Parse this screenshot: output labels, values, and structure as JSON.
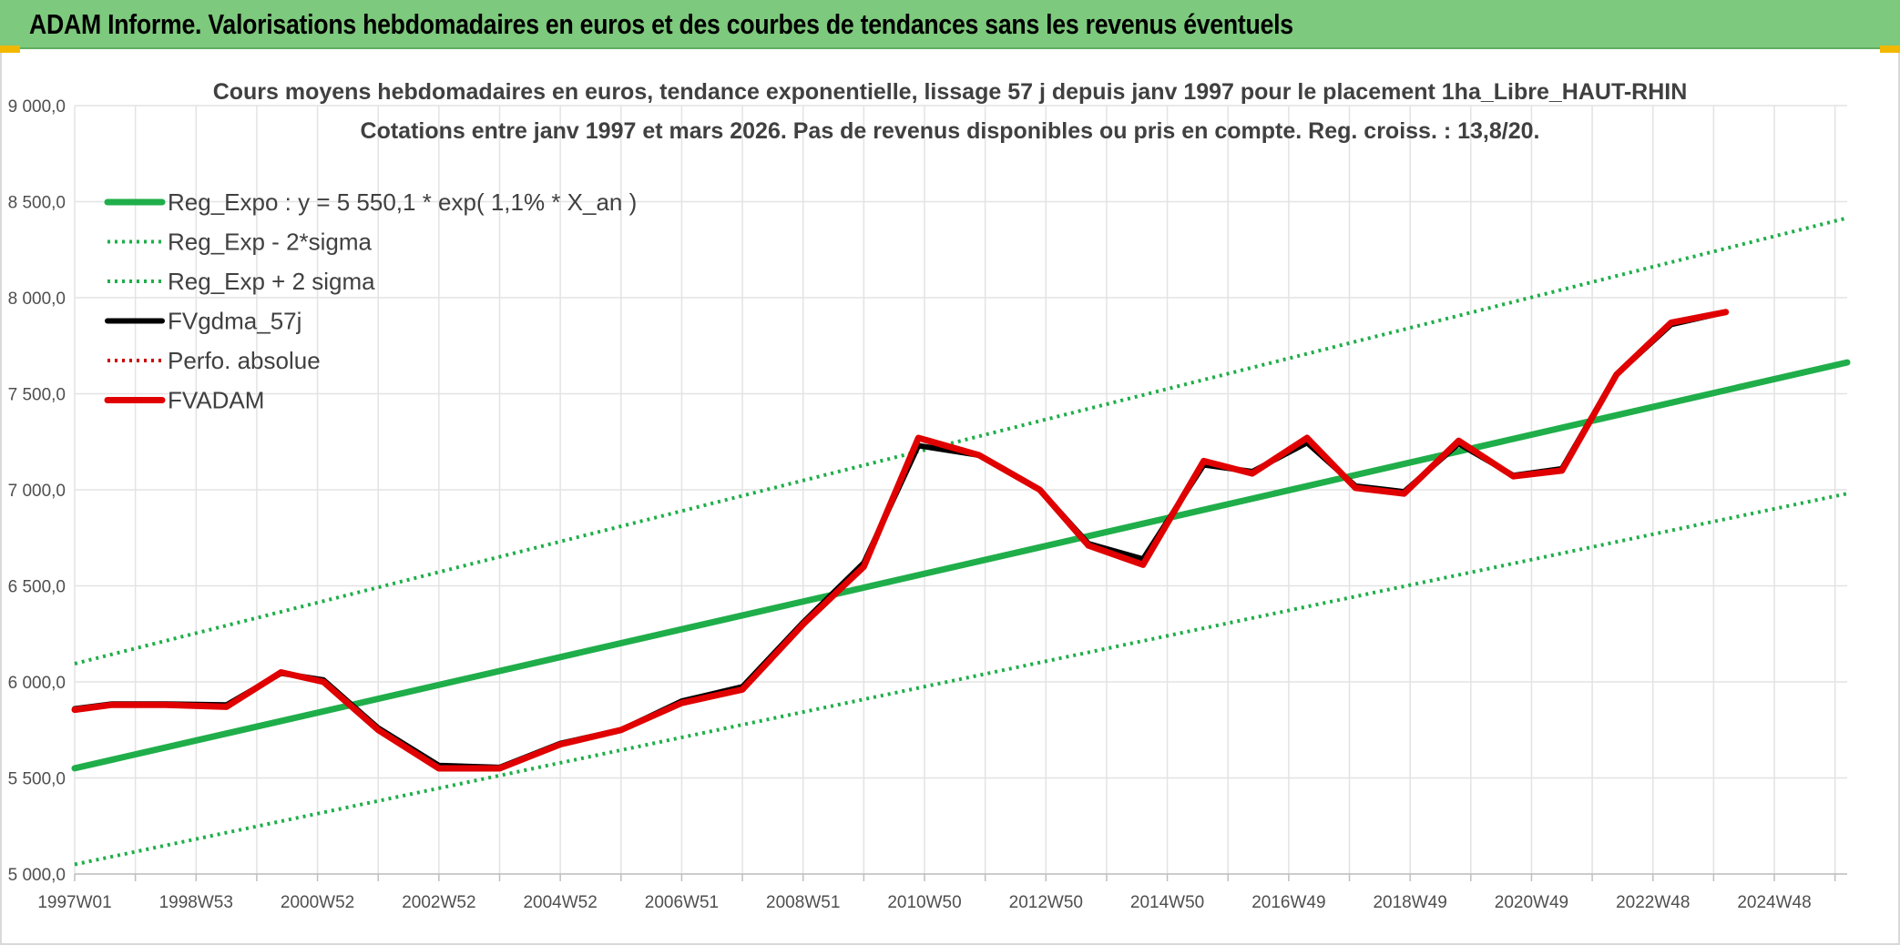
{
  "header": {
    "title": "ADAM Informe. Valorisations hebdomadaires en euros et des courbes de tendances sans les revenus éventuels"
  },
  "colors": {
    "header_bg": "#7dc97d",
    "trend": "#1fae4a",
    "fv": "#e00000",
    "gdma": "#000000",
    "perf": "#cc0000",
    "grid": "#e3e3e3"
  },
  "chart_data": {
    "type": "line",
    "title_line1": "Cours moyens hebdomadaires en euros, tendance exponentielle, lissage 57 j depuis janv 1997 pour le placement 1ha_Libre_HAUT-RHIN",
    "title_line2": "Cotations entre janv 1997 et mars 2026. Pas de revenus disponibles ou pris en compte. Reg. croiss. : 13,8/20.",
    "xlabel": "",
    "ylabel": "",
    "ylim": [
      5000,
      9000
    ],
    "xlim": [
      1997.0,
      2026.2
    ],
    "grid": true,
    "y_ticks": [
      {
        "value": 5000,
        "label": "5 000,0"
      },
      {
        "value": 5500,
        "label": "5 500,0"
      },
      {
        "value": 6000,
        "label": "6 000,0"
      },
      {
        "value": 6500,
        "label": "6 500,0"
      },
      {
        "value": 7000,
        "label": "7 000,0"
      },
      {
        "value": 7500,
        "label": "7 500,0"
      },
      {
        "value": 8000,
        "label": "8 000,0"
      },
      {
        "value": 8500,
        "label": "8 500,0"
      },
      {
        "value": 9000,
        "label": "9 000,0"
      }
    ],
    "x_ticks": [
      {
        "value": 1997.0,
        "label": "1997W01"
      },
      {
        "value": 1999.0,
        "label": "1998W53"
      },
      {
        "value": 2001.0,
        "label": "2000W52"
      },
      {
        "value": 2003.0,
        "label": "2002W52"
      },
      {
        "value": 2005.0,
        "label": "2004W52"
      },
      {
        "value": 2007.0,
        "label": "2006W51"
      },
      {
        "value": 2009.0,
        "label": "2008W51"
      },
      {
        "value": 2011.0,
        "label": "2010W50"
      },
      {
        "value": 2013.0,
        "label": "2012W50"
      },
      {
        "value": 2015.0,
        "label": "2014W50"
      },
      {
        "value": 2017.0,
        "label": "2016W49"
      },
      {
        "value": 2019.0,
        "label": "2018W49"
      },
      {
        "value": 2021.0,
        "label": "2020W49"
      },
      {
        "value": 2023.0,
        "label": "2022W48"
      },
      {
        "value": 2025.0,
        "label": "2024W48"
      }
    ],
    "x_minor_ticks": [
      1998.0,
      2000.0,
      2002.0,
      2004.0,
      2006.0,
      2008.0,
      2010.0,
      2012.0,
      2014.0,
      2016.0,
      2018.0,
      2020.0,
      2022.0,
      2024.0,
      2026.0
    ],
    "legend_position": "top-left",
    "series": [
      {
        "name": "Reg_Expo : y = 5 550,1 * exp( 1,1% *  X_an )",
        "style": "solid-thick",
        "color": "#1fae4a",
        "points": [
          [
            1997.0,
            5550.1
          ],
          [
            2026.2,
            7663.0
          ]
        ]
      },
      {
        "name": "Reg_Exp - 2*sigma",
        "style": "dotted",
        "color": "#1fae4a",
        "points": [
          [
            1997.0,
            5050.0
          ],
          [
            2026.2,
            6980.0
          ]
        ]
      },
      {
        "name": "Reg_Exp + 2 sigma",
        "style": "dotted",
        "color": "#1fae4a",
        "points": [
          [
            1997.0,
            6095.0
          ],
          [
            2026.2,
            8415.0
          ]
        ]
      },
      {
        "name": "FVgdma_57j",
        "style": "solid",
        "color": "#000000",
        "points": [
          [
            1997.0,
            5860
          ],
          [
            1997.6,
            5885
          ],
          [
            1998.5,
            5885
          ],
          [
            1999.5,
            5880
          ],
          [
            2000.4,
            6045
          ],
          [
            2001.1,
            6010
          ],
          [
            2002.0,
            5760
          ],
          [
            2003.0,
            5565
          ],
          [
            2004.0,
            5555
          ],
          [
            2005.0,
            5680
          ],
          [
            2006.0,
            5750
          ],
          [
            2007.0,
            5900
          ],
          [
            2008.0,
            5975
          ],
          [
            2009.0,
            6310
          ],
          [
            2010.0,
            6620
          ],
          [
            2010.9,
            7230
          ],
          [
            2011.9,
            7180
          ],
          [
            2012.9,
            7000
          ],
          [
            2013.7,
            6720
          ],
          [
            2014.6,
            6640
          ],
          [
            2015.6,
            7130
          ],
          [
            2016.4,
            7095
          ],
          [
            2017.3,
            7245
          ],
          [
            2018.1,
            7020
          ],
          [
            2018.9,
            6990
          ],
          [
            2019.8,
            7240
          ],
          [
            2020.7,
            7075
          ],
          [
            2021.5,
            7110
          ],
          [
            2022.4,
            7600
          ],
          [
            2023.3,
            7860
          ],
          [
            2024.2,
            7925
          ]
        ]
      },
      {
        "name": "Perfo. absolue",
        "style": "dotted",
        "color": "#cc0000",
        "points": []
      },
      {
        "name": "FVADAM",
        "style": "solid-thick",
        "color": "#e00000",
        "points": [
          [
            1997.0,
            5855
          ],
          [
            1997.6,
            5880
          ],
          [
            1998.5,
            5880
          ],
          [
            1999.5,
            5870
          ],
          [
            2000.4,
            6050
          ],
          [
            2001.1,
            6000
          ],
          [
            2002.0,
            5750
          ],
          [
            2003.0,
            5550
          ],
          [
            2004.0,
            5550
          ],
          [
            2005.0,
            5675
          ],
          [
            2006.0,
            5750
          ],
          [
            2007.0,
            5890
          ],
          [
            2008.0,
            5960
          ],
          [
            2009.0,
            6300
          ],
          [
            2010.0,
            6600
          ],
          [
            2010.9,
            7270
          ],
          [
            2011.9,
            7180
          ],
          [
            2012.9,
            7000
          ],
          [
            2013.7,
            6710
          ],
          [
            2014.6,
            6610
          ],
          [
            2015.6,
            7150
          ],
          [
            2016.4,
            7085
          ],
          [
            2017.3,
            7270
          ],
          [
            2018.1,
            7010
          ],
          [
            2018.9,
            6980
          ],
          [
            2019.8,
            7255
          ],
          [
            2020.7,
            7070
          ],
          [
            2021.5,
            7100
          ],
          [
            2022.4,
            7600
          ],
          [
            2023.3,
            7870
          ],
          [
            2024.2,
            7925
          ]
        ]
      }
    ]
  }
}
